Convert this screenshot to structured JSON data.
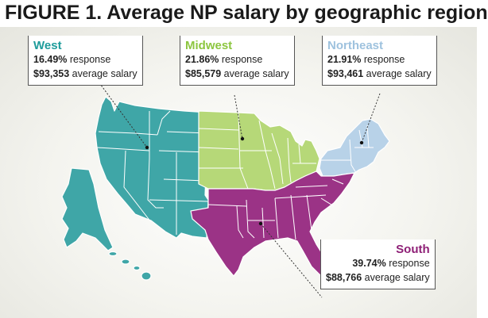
{
  "title": "FIGURE 1. Average NP salary by geographic region",
  "colors": {
    "west": "#3fa6a7",
    "midwest": "#b6d878",
    "northeast": "#b8d2e8",
    "south": "#9b3386",
    "state_borders": "#ffffff"
  },
  "regions": [
    {
      "key": "west",
      "name": "West",
      "response": "16.49%",
      "response_label": "response",
      "salary": "$93,353",
      "salary_label": "average salary"
    },
    {
      "key": "midwest",
      "name": "Midwest",
      "response": "21.86%",
      "response_label": "response",
      "salary": "$85,579",
      "salary_label": "average salary"
    },
    {
      "key": "northeast",
      "name": "Northeast",
      "response": "21.91%",
      "response_label": "response",
      "salary": "$93,461",
      "salary_label": "average salary"
    },
    {
      "key": "south",
      "name": "South",
      "response": "39.74%",
      "response_label": "response",
      "salary": "$88,766",
      "salary_label": "average salary"
    }
  ]
}
